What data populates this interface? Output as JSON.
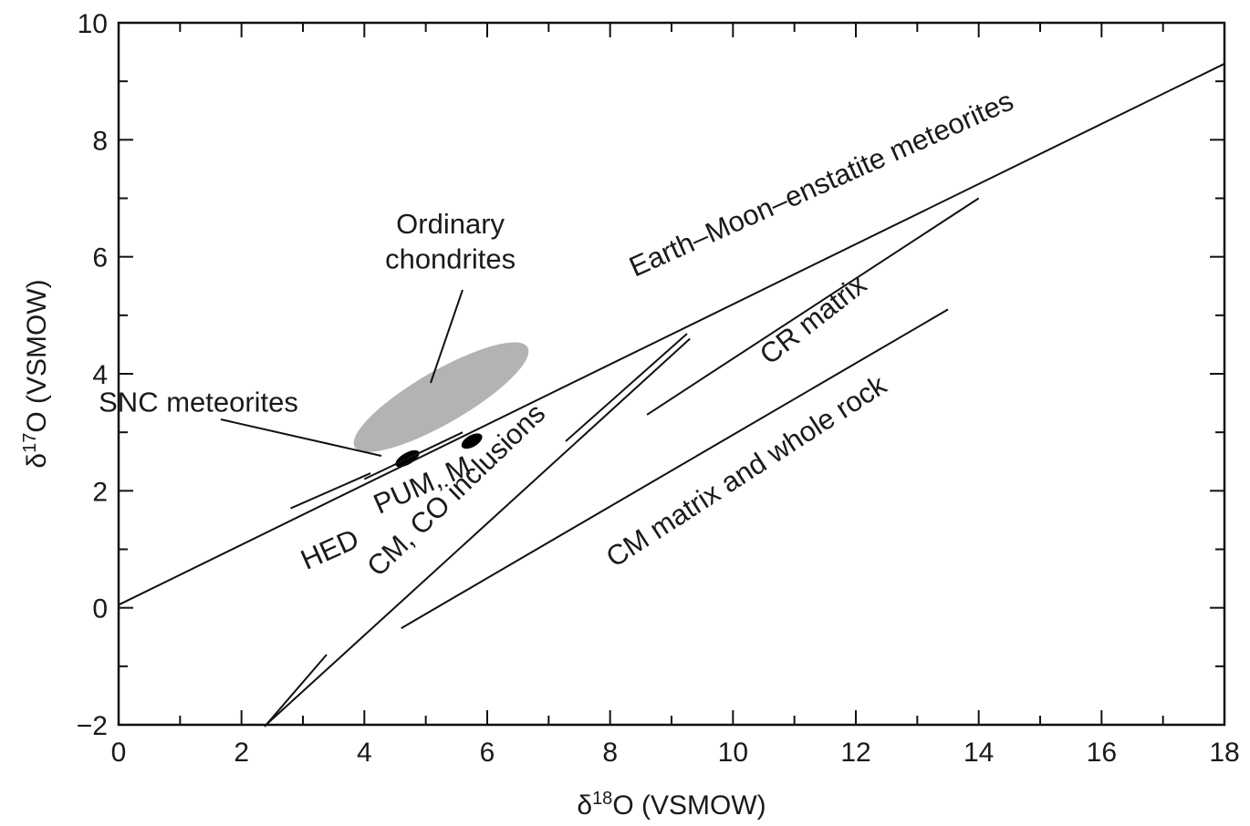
{
  "chart_data": {
    "type": "line",
    "xlabel": "δ18O (VSMOW)",
    "ylabel": "δ17O (VSMOW)",
    "xlim": [
      0,
      18
    ],
    "ylim": [
      -2,
      10
    ],
    "x_ticks": [
      "0",
      "2",
      "4",
      "6",
      "8",
      "10",
      "12",
      "14",
      "16",
      "18"
    ],
    "y_ticks": [
      "−2",
      "0",
      "2",
      "4",
      "6",
      "8",
      "10"
    ],
    "x_tick_values": [
      0,
      2,
      4,
      6,
      8,
      10,
      12,
      14,
      16,
      18
    ],
    "y_tick_values": [
      -2,
      0,
      2,
      4,
      6,
      8,
      10
    ],
    "grid": false,
    "series": [
      {
        "name": "Earth–Moon–enstatite meteorites",
        "x": [
          0,
          18
        ],
        "y": [
          0.05,
          9.3
        ]
      },
      {
        "name": "CM, CO inclusions",
        "x": [
          2.4,
          9.3
        ],
        "y": [
          -2,
          4.6
        ]
      },
      {
        "name": "CR matrix",
        "x": [
          8.6,
          14.0
        ],
        "y": [
          3.3,
          7.0
        ]
      },
      {
        "name": "CM matrix and whole rock",
        "x": [
          4.6,
          13.5
        ],
        "y": [
          -0.35,
          5.1
        ]
      },
      {
        "name": "HED",
        "x": [
          2.8,
          4.1
        ],
        "y": [
          1.7,
          2.3
        ]
      },
      {
        "name": "PUM, M",
        "x": [
          4.0,
          5.6
        ],
        "y": [
          2.2,
          3.0
        ]
      }
    ],
    "regions": [
      {
        "name": "Ordinary chondrites",
        "center": [
          5.25,
          3.6
        ],
        "semi_axes_data": [
          2.6,
          0.45
        ],
        "angle_deg": 30
      },
      {
        "name": "SNC meteorites",
        "center": [
          4.7,
          2.55
        ],
        "semi_axes_data": [
          0.35,
          0.1
        ],
        "angle_deg": 30
      },
      {
        "name": "PUM, M marker",
        "center": [
          5.75,
          2.85
        ],
        "semi_axes_data": [
          0.3,
          0.1
        ],
        "angle_deg": 30
      }
    ],
    "annotations": [
      {
        "text": "Earth–Moon–enstatite meteorites",
        "x": 11.5,
        "y": 7.1,
        "rotate": -24
      },
      {
        "text": "Ordinary",
        "x": 5.4,
        "y": 6.4,
        "rotate": 0
      },
      {
        "text": "chondrites",
        "x": 5.4,
        "y": 5.8,
        "rotate": 0
      },
      {
        "text": "SNC meteorites",
        "x": 1.3,
        "y": 3.35,
        "rotate": 0
      },
      {
        "text": "PUM, M",
        "x": 5.0,
        "y": 1.95,
        "rotate": -24
      },
      {
        "text": "HED",
        "x": 3.5,
        "y": 0.85,
        "rotate": -24
      },
      {
        "text": "CM, CO inclusions",
        "x": 5.6,
        "y": 1.9,
        "rotate": -44
      },
      {
        "text": "CR matrix",
        "x": 11.4,
        "y": 4.8,
        "rotate": -38
      },
      {
        "text": "CM matrix and whole rock",
        "x": 10.3,
        "y": 2.2,
        "rotate": -33
      }
    ]
  }
}
